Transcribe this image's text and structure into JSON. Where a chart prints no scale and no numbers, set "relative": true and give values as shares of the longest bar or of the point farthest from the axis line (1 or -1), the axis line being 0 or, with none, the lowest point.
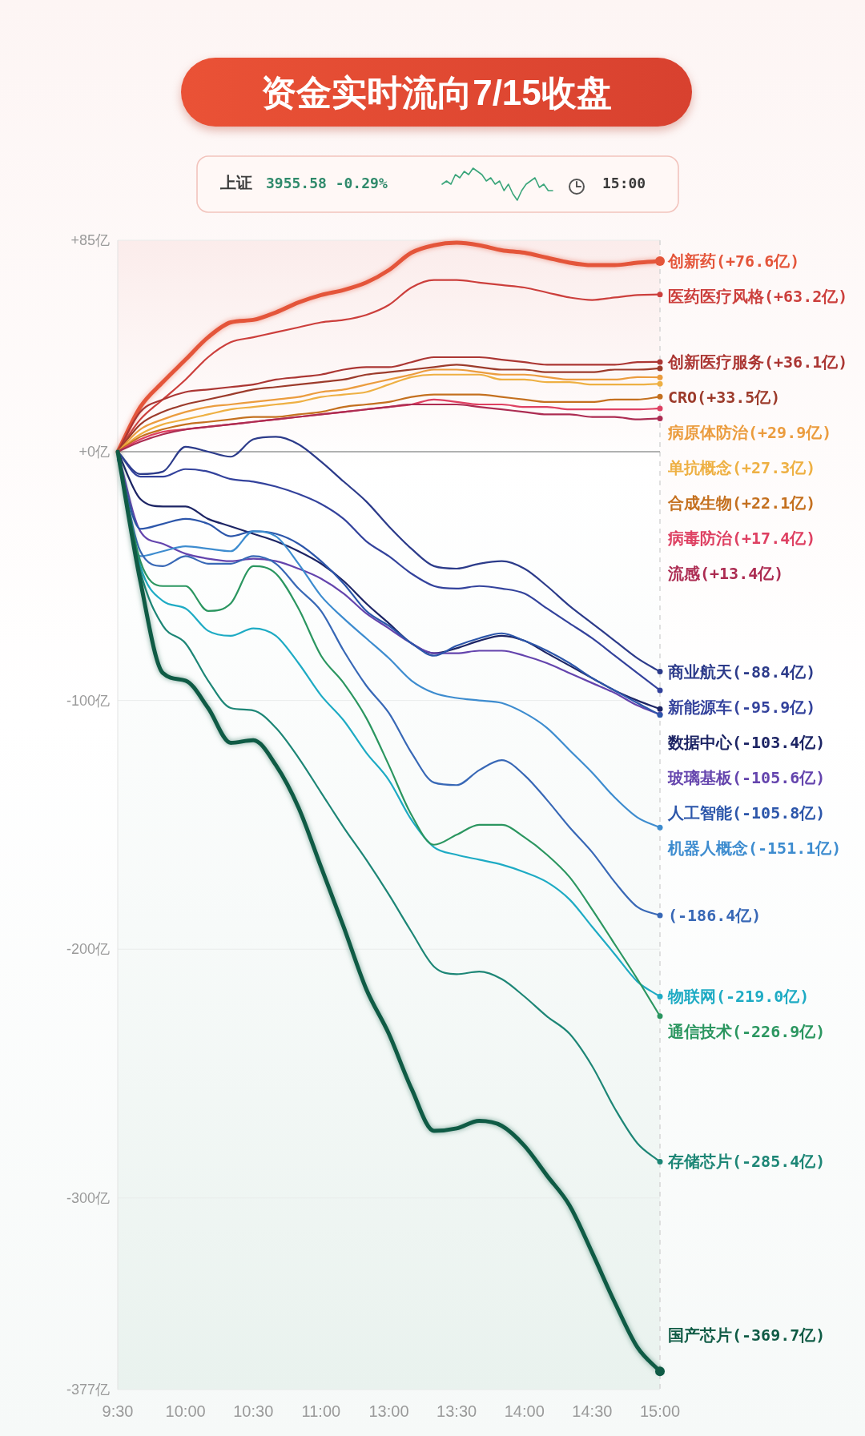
{
  "chart_data": [
    {
      "type": "other",
      "title": "资金实时流向7/15收盘",
      "annotations": [
        "上证",
        "3955.58 -0.29%",
        "15:00"
      ]
    },
    {
      "type": "line",
      "relative": true,
      "categories": [
        null,
        null,
        null,
        null,
        null,
        null,
        null,
        null,
        null,
        null,
        null,
        null,
        null,
        null,
        null,
        null,
        null,
        null,
        null,
        null,
        null,
        null,
        null,
        null,
        null,
        null
      ],
      "series": [
        {
          "color": "#3aa57a",
          "values": [
            0.5,
            0.6,
            0.5,
            0.8,
            0.7,
            0.9,
            0.8,
            1,
            0.9,
            0.8,
            0.6,
            0.7,
            0.5,
            0.6,
            0.3,
            0.5,
            0.2,
            0,
            0.3,
            0.5,
            0.6,
            0.7,
            0.4,
            0.5,
            0.3,
            0.3
          ]
        }
      ]
    },
    {
      "type": "line",
      "categories": [
        "9:30",
        null,
        null,
        "10:00",
        null,
        null,
        "10:30",
        null,
        null,
        "11:00",
        null,
        null,
        "13:00",
        null,
        null,
        "13:30",
        null,
        null,
        "14:00",
        null,
        null,
        "14:30",
        null,
        null,
        "15:00"
      ],
      "ylim": [
        -377,
        85
      ],
      "yticks": [
        {
          "value": 85,
          "label": "+85亿"
        },
        {
          "value": 0,
          "label": "+0亿"
        },
        {
          "value": -100,
          "label": "-100亿"
        },
        {
          "value": -200,
          "label": "-200亿"
        },
        {
          "value": -300,
          "label": "-300亿"
        },
        {
          "value": -377,
          "label": "-377亿"
        }
      ],
      "grid": "y",
      "ref_lines": [
        {
          "axis": "y",
          "value": 0,
          "color": "#9a9a9a"
        }
      ],
      "series": [
        {
          "name": "创新药",
          "color": "#e4553a",
          "values": [
            0,
            18,
            28,
            37,
            46,
            52,
            53,
            56,
            60,
            63,
            65,
            68,
            73,
            80,
            83,
            84,
            83,
            81,
            80,
            78,
            76,
            75,
            75,
            76,
            76.6
          ],
          "value_labels": [
            null,
            null,
            null,
            null,
            null,
            null,
            null,
            null,
            null,
            null,
            null,
            null,
            null,
            null,
            null,
            null,
            null,
            null,
            null,
            null,
            null,
            null,
            null,
            null,
            "(+76.6亿)"
          ]
        },
        {
          "name": "医药医疗风格",
          "color": "#cc3f3c",
          "values": [
            0,
            13,
            21,
            29,
            38,
            44,
            46,
            48,
            50,
            52,
            53,
            55,
            59,
            66,
            69,
            69,
            68,
            67,
            66,
            64,
            62,
            61,
            62,
            63,
            63.2
          ],
          "value_labels": [
            null,
            null,
            null,
            null,
            null,
            null,
            null,
            null,
            null,
            null,
            null,
            null,
            null,
            null,
            null,
            null,
            null,
            null,
            null,
            null,
            null,
            null,
            null,
            null,
            "(+63.2亿)"
          ]
        },
        {
          "name": "创新医疗服务",
          "color": "#ab3633",
          "values": [
            0,
            16,
            21,
            24,
            25,
            26,
            27,
            29,
            30,
            31,
            33,
            34,
            34,
            36,
            38,
            38,
            38,
            37,
            36,
            35,
            35,
            35,
            35,
            36,
            36.1
          ],
          "value_labels": [
            null,
            null,
            null,
            null,
            null,
            null,
            null,
            null,
            null,
            null,
            null,
            null,
            null,
            null,
            null,
            null,
            null,
            null,
            null,
            null,
            null,
            null,
            null,
            null,
            "(+36.1亿)"
          ]
        },
        {
          "name": "CRO",
          "color": "#9c3b2b",
          "values": [
            0,
            11,
            16,
            19,
            21,
            23,
            25,
            26,
            27,
            28,
            29,
            31,
            32,
            33,
            34,
            35,
            34,
            33,
            33,
            32,
            32,
            32,
            33,
            33,
            33.5
          ],
          "value_labels": [
            null,
            null,
            null,
            null,
            null,
            null,
            null,
            null,
            null,
            null,
            null,
            null,
            null,
            null,
            null,
            null,
            null,
            null,
            null,
            null,
            null,
            null,
            null,
            null,
            "(+33.5亿)"
          ]
        },
        {
          "name": "病原体防治",
          "color": "#eb9c3e",
          "values": [
            0,
            9,
            13,
            16,
            18,
            19,
            20,
            21,
            22,
            24,
            25,
            27,
            29,
            31,
            33,
            33,
            32,
            31,
            31,
            30,
            29,
            29,
            29,
            30,
            29.9
          ],
          "value_labels": [
            null,
            null,
            null,
            null,
            null,
            null,
            null,
            null,
            null,
            null,
            null,
            null,
            null,
            null,
            null,
            null,
            null,
            null,
            null,
            null,
            null,
            null,
            null,
            null,
            "(+29.9亿)"
          ]
        },
        {
          "name": "单抗概念",
          "color": "#eeb043",
          "values": [
            0,
            7,
            11,
            13,
            15,
            17,
            18,
            19,
            20,
            22,
            23,
            24,
            27,
            30,
            31,
            31,
            31,
            29,
            29,
            28,
            28,
            27,
            27,
            27,
            27.3
          ],
          "value_labels": [
            null,
            null,
            null,
            null,
            null,
            null,
            null,
            null,
            null,
            null,
            null,
            null,
            null,
            null,
            null,
            null,
            null,
            null,
            null,
            null,
            null,
            null,
            null,
            null,
            "(+27.3亿)"
          ]
        },
        {
          "name": "合成生物",
          "color": "#c4701f",
          "values": [
            0,
            6,
            9,
            11,
            12,
            13,
            14,
            14,
            15,
            16,
            18,
            19,
            20,
            22,
            23,
            23,
            23,
            22,
            21,
            20,
            20,
            20,
            21,
            21,
            22.1
          ],
          "value_labels": [
            null,
            null,
            null,
            null,
            null,
            null,
            null,
            null,
            null,
            null,
            null,
            null,
            null,
            null,
            null,
            null,
            null,
            null,
            null,
            null,
            null,
            null,
            null,
            null,
            "(+22.1亿)"
          ]
        },
        {
          "name": "病毒防治",
          "color": "#de4062",
          "values": [
            0,
            5,
            8,
            9,
            10,
            11,
            12,
            13,
            14,
            15,
            16,
            17,
            18,
            19,
            21,
            20,
            19,
            19,
            18,
            18,
            17,
            17,
            17,
            17,
            17.4
          ],
          "value_labels": [
            null,
            null,
            null,
            null,
            null,
            null,
            null,
            null,
            null,
            null,
            null,
            null,
            null,
            null,
            null,
            null,
            null,
            null,
            null,
            null,
            null,
            null,
            null,
            null,
            "(+17.4亿)"
          ]
        },
        {
          "name": "流感",
          "color": "#ac2c52",
          "values": [
            0,
            4,
            7,
            9,
            10,
            11,
            12,
            13,
            14,
            15,
            16,
            17,
            18,
            19,
            19,
            19,
            18,
            17,
            16,
            15,
            15,
            14,
            14,
            13,
            13.4
          ],
          "value_labels": [
            null,
            null,
            null,
            null,
            null,
            null,
            null,
            null,
            null,
            null,
            null,
            null,
            null,
            null,
            null,
            null,
            null,
            null,
            null,
            null,
            null,
            null,
            null,
            null,
            "(+13.4亿)"
          ]
        },
        {
          "name": "商业航天",
          "color": "#2c3b8a",
          "values": [
            0,
            -9,
            -8,
            2,
            0,
            -2,
            5,
            6,
            3,
            -4,
            -12,
            -20,
            -30,
            -39,
            -46,
            -47,
            -45,
            -44,
            -47,
            -54,
            -62,
            -69,
            -76,
            -83,
            -88.4
          ],
          "value_labels": [
            null,
            null,
            null,
            null,
            null,
            null,
            null,
            null,
            null,
            null,
            null,
            null,
            null,
            null,
            null,
            null,
            null,
            null,
            null,
            null,
            null,
            null,
            null,
            null,
            "(-88.4亿)"
          ]
        },
        {
          "name": "新能源车",
          "color": "#33429c",
          "values": [
            0,
            -10,
            -10,
            -7,
            -8,
            -11,
            -12,
            -14,
            -17,
            -21,
            -27,
            -36,
            -42,
            -49,
            -54,
            -55,
            -54,
            -55,
            -57,
            -63,
            -69,
            -75,
            -82,
            -89,
            -95.9
          ],
          "value_labels": [
            null,
            null,
            null,
            null,
            null,
            null,
            null,
            null,
            null,
            null,
            null,
            null,
            null,
            null,
            null,
            null,
            null,
            null,
            null,
            null,
            null,
            null,
            null,
            null,
            "(-95.9亿)"
          ]
        },
        {
          "name": "数据中心",
          "color": "#1c2464",
          "values": [
            0,
            -19,
            -22,
            -22,
            -27,
            -30,
            -33,
            -36,
            -40,
            -45,
            -52,
            -61,
            -69,
            -77,
            -81,
            -79,
            -76,
            -74,
            -76,
            -81,
            -86,
            -91,
            -96,
            -100,
            -103.4
          ],
          "value_labels": [
            null,
            null,
            null,
            null,
            null,
            null,
            null,
            null,
            null,
            null,
            null,
            null,
            null,
            null,
            null,
            null,
            null,
            null,
            null,
            null,
            null,
            null,
            null,
            null,
            "(-103.4亿)"
          ]
        },
        {
          "name": "玻璃基板",
          "color": "#6444ad",
          "values": [
            0,
            -32,
            -37,
            -41,
            -43,
            -44,
            -43,
            -44,
            -47,
            -51,
            -57,
            -65,
            -71,
            -77,
            -81,
            -81,
            -80,
            -80,
            -82,
            -85,
            -89,
            -93,
            -97,
            -102,
            -105.6
          ],
          "value_labels": [
            null,
            null,
            null,
            null,
            null,
            null,
            null,
            null,
            null,
            null,
            null,
            null,
            null,
            null,
            null,
            null,
            null,
            null,
            null,
            null,
            null,
            null,
            null,
            null,
            "(-105.6亿)"
          ]
        },
        {
          "name": "人工智能",
          "color": "#2c56aa",
          "values": [
            -3,
            -31,
            -29,
            -27,
            -29,
            -34,
            -32,
            -33,
            -37,
            -44,
            -53,
            -64,
            -70,
            -77,
            -82,
            -78,
            -75,
            -73,
            -76,
            -80,
            -85,
            -91,
            -96,
            -101,
            -105.8
          ],
          "value_labels": [
            null,
            null,
            null,
            null,
            null,
            null,
            null,
            null,
            null,
            null,
            null,
            null,
            null,
            null,
            null,
            null,
            null,
            null,
            null,
            null,
            null,
            null,
            null,
            null,
            "(-105.8亿)"
          ]
        },
        {
          "name": "机器人概念",
          "color": "#3d8ccf",
          "values": [
            0,
            -42,
            -40,
            -38,
            -39,
            -40,
            -32,
            -34,
            -45,
            -58,
            -67,
            -75,
            -83,
            -92,
            -97,
            -99,
            -100,
            -101,
            -105,
            -111,
            -120,
            -129,
            -139,
            -147,
            -151.1
          ],
          "value_labels": [
            null,
            null,
            null,
            null,
            null,
            null,
            null,
            null,
            null,
            null,
            null,
            null,
            null,
            null,
            null,
            null,
            null,
            null,
            null,
            null,
            null,
            null,
            null,
            null,
            "(-151.1亿)"
          ]
        },
        {
          "color": "#3868b6",
          "values": [
            0,
            -40,
            -46,
            -42,
            -45,
            -45,
            -42,
            -45,
            -55,
            -64,
            -80,
            -94,
            -105,
            -121,
            -133,
            -134,
            -128,
            -124,
            -130,
            -140,
            -151,
            -161,
            -173,
            -183,
            -186.4
          ],
          "value_labels": [
            null,
            null,
            null,
            null,
            null,
            null,
            null,
            null,
            null,
            null,
            null,
            null,
            null,
            null,
            null,
            null,
            null,
            null,
            null,
            null,
            null,
            null,
            null,
            null,
            "(-186.4亿)"
          ]
        },
        {
          "name": "物联网",
          "color": "#1eabc4",
          "values": [
            0,
            -46,
            -60,
            -63,
            -72,
            -74,
            -71,
            -74,
            -85,
            -98,
            -108,
            -121,
            -132,
            -148,
            -159,
            -162,
            -164,
            -166,
            -169,
            -173,
            -180,
            -191,
            -202,
            -213,
            -219.0
          ],
          "value_labels": [
            null,
            null,
            null,
            null,
            null,
            null,
            null,
            null,
            null,
            null,
            null,
            null,
            null,
            null,
            null,
            null,
            null,
            null,
            null,
            null,
            null,
            null,
            null,
            null,
            "(-219.0亿)"
          ]
        },
        {
          "name": "通信技术",
          "color": "#2b9660",
          "values": [
            0,
            -44,
            -54,
            -54,
            -64,
            -61,
            -46,
            -49,
            -63,
            -82,
            -93,
            -107,
            -126,
            -146,
            -158,
            -154,
            -150,
            -150,
            -155,
            -162,
            -171,
            -184,
            -198,
            -212,
            -226.9
          ],
          "value_labels": [
            null,
            null,
            null,
            null,
            null,
            null,
            null,
            null,
            null,
            null,
            null,
            null,
            null,
            null,
            null,
            null,
            null,
            null,
            null,
            null,
            null,
            null,
            null,
            null,
            "(-226.9亿)"
          ]
        },
        {
          "name": "存储芯片",
          "color": "#1d8676",
          "values": [
            0,
            -48,
            -70,
            -77,
            -92,
            -103,
            -104,
            -111,
            -123,
            -137,
            -151,
            -164,
            -178,
            -193,
            -207,
            -210,
            -209,
            -212,
            -219,
            -227,
            -234,
            -247,
            -264,
            -278,
            -285.4
          ],
          "value_labels": [
            null,
            null,
            null,
            null,
            null,
            null,
            null,
            null,
            null,
            null,
            null,
            null,
            null,
            null,
            null,
            null,
            null,
            null,
            null,
            null,
            null,
            null,
            null,
            null,
            "(-285.4亿)"
          ]
        },
        {
          "name": "国产芯片",
          "color": "#0f5b45",
          "values": [
            0,
            -52,
            -89,
            -92,
            -103,
            -117,
            -116,
            -126,
            -143,
            -167,
            -191,
            -216,
            -234,
            -256,
            -273,
            -272,
            -269,
            -271,
            -279,
            -291,
            -303,
            -322,
            -342,
            -360,
            -369.7
          ],
          "value_labels": [
            null,
            null,
            null,
            null,
            null,
            null,
            null,
            null,
            null,
            null,
            null,
            null,
            null,
            null,
            null,
            null,
            null,
            null,
            null,
            null,
            null,
            null,
            null,
            null,
            "(-369.7亿)"
          ]
        }
      ]
    }
  ]
}
